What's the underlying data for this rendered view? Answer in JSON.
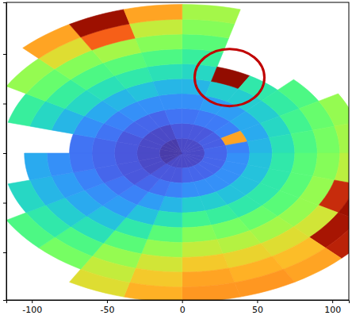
{
  "chart_data": {
    "type": "heatmap",
    "xlim": [
      -117,
      111
    ],
    "xticks": [
      -100,
      -50,
      0,
      50,
      100
    ],
    "ylim": [
      -148,
      152
    ],
    "yticks": [
      -100,
      -50,
      0,
      50,
      100
    ],
    "tick_labels": "x",
    "clim": [
      0,
      100
    ],
    "azimuth_bins": [
      0,
      15,
      30,
      45,
      60,
      75,
      90,
      105,
      120,
      135,
      150,
      165,
      180,
      195,
      210,
      225,
      240,
      255,
      270,
      285,
      300,
      315,
      330,
      345,
      360
    ],
    "range_bins": [
      0,
      15,
      30,
      45,
      60,
      75,
      90,
      105,
      120,
      135,
      150
    ],
    "cells": [
      [
        8,
        10,
        14,
        18,
        24,
        30,
        36,
        42,
        48,
        52
      ],
      [
        8,
        10,
        15,
        20,
        28,
        98,
        null,
        null,
        null,
        null
      ],
      [
        8,
        10,
        15,
        20,
        28,
        34,
        null,
        null,
        null,
        null
      ],
      [
        8,
        11,
        16,
        22,
        28,
        35,
        40,
        null,
        null,
        null
      ],
      [
        8,
        11,
        70,
        22,
        30,
        38,
        44,
        50,
        null,
        null
      ],
      [
        8,
        12,
        16,
        24,
        32,
        40,
        46,
        52,
        60,
        66
      ],
      [
        8,
        12,
        18,
        26,
        34,
        42,
        48,
        55,
        62,
        70
      ],
      [
        8,
        12,
        18,
        26,
        34,
        42,
        50,
        88,
        95,
        92
      ],
      [
        8,
        12,
        18,
        26,
        34,
        42,
        50,
        58,
        93,
        90
      ],
      [
        8,
        12,
        18,
        26,
        34,
        44,
        52,
        60,
        66,
        70
      ],
      [
        8,
        12,
        18,
        28,
        36,
        46,
        54,
        62,
        68,
        72
      ],
      [
        8,
        12,
        18,
        28,
        38,
        48,
        56,
        64,
        70,
        72
      ],
      [
        8,
        10,
        16,
        24,
        32,
        42,
        50,
        58,
        64,
        68
      ],
      [
        8,
        10,
        14,
        20,
        26,
        34,
        42,
        50,
        56,
        60
      ],
      [
        8,
        10,
        12,
        16,
        20,
        26,
        32,
        40,
        46,
        null
      ],
      [
        6,
        8,
        10,
        14,
        18,
        22,
        28,
        34,
        40,
        null
      ],
      [
        6,
        8,
        10,
        12,
        16,
        20,
        24,
        30,
        null,
        null
      ],
      [
        6,
        8,
        10,
        12,
        14,
        18,
        22,
        null,
        null,
        null
      ],
      [
        6,
        8,
        10,
        12,
        14,
        null,
        null,
        null,
        null,
        null
      ],
      [
        6,
        8,
        10,
        14,
        18,
        24,
        30,
        36,
        null,
        null
      ],
      [
        6,
        8,
        12,
        16,
        22,
        30,
        36,
        44,
        50,
        null
      ],
      [
        6,
        8,
        12,
        18,
        24,
        32,
        40,
        48,
        60,
        70
      ],
      [
        6,
        8,
        12,
        18,
        26,
        34,
        42,
        52,
        80,
        95
      ],
      [
        8,
        10,
        14,
        18,
        24,
        32,
        40,
        48,
        56,
        70
      ]
    ]
  }
}
